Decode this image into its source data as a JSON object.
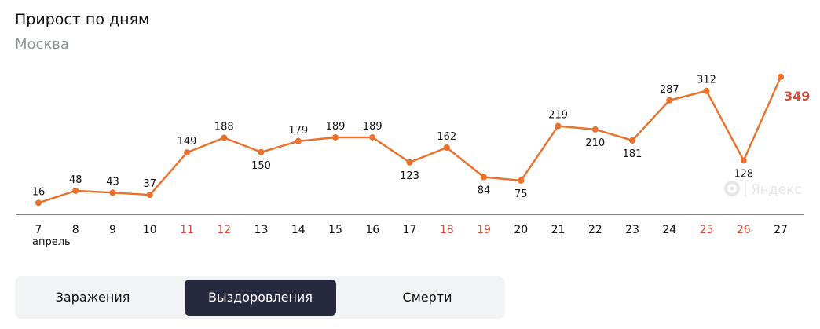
{
  "header": {
    "title": "Прирост по дням",
    "subtitle": "Москва"
  },
  "watermark": {
    "text": "Яндекс"
  },
  "tabs": [
    {
      "label": "Заражения",
      "active": false
    },
    {
      "label": "Выздоровления",
      "active": true
    },
    {
      "label": "Смерти",
      "active": false
    }
  ],
  "colors": {
    "line": "#ec6f2a",
    "weekend_label": "#d64d3a",
    "last_value": "#d64d3a",
    "axis": "#333333",
    "active_tab": "#27293f"
  },
  "chart_data": {
    "type": "line",
    "title": "Прирост по дням",
    "subtitle": "Москва",
    "x": [
      "7",
      "8",
      "9",
      "10",
      "11",
      "12",
      "13",
      "14",
      "15",
      "16",
      "17",
      "18",
      "19",
      "20",
      "21",
      "22",
      "23",
      "24",
      "25",
      "26",
      "27"
    ],
    "x_month_label": "апрель",
    "weekend_days": [
      "11",
      "12",
      "18",
      "19",
      "25",
      "26"
    ],
    "series": [
      {
        "values": [
          16,
          48,
          43,
          37,
          149,
          188,
          150,
          179,
          189,
          189,
          123,
          162,
          84,
          75,
          219,
          210,
          181,
          287,
          312,
          128,
          349
        ]
      }
    ],
    "label_position": [
      "above",
      "above",
      "above",
      "above",
      "above",
      "above",
      "below",
      "above",
      "above",
      "above",
      "below",
      "above",
      "below",
      "below",
      "above",
      "below",
      "below",
      "above",
      "above",
      "below",
      "right"
    ],
    "ylim": [
      0,
      380
    ],
    "grid": false,
    "legend": "none"
  }
}
